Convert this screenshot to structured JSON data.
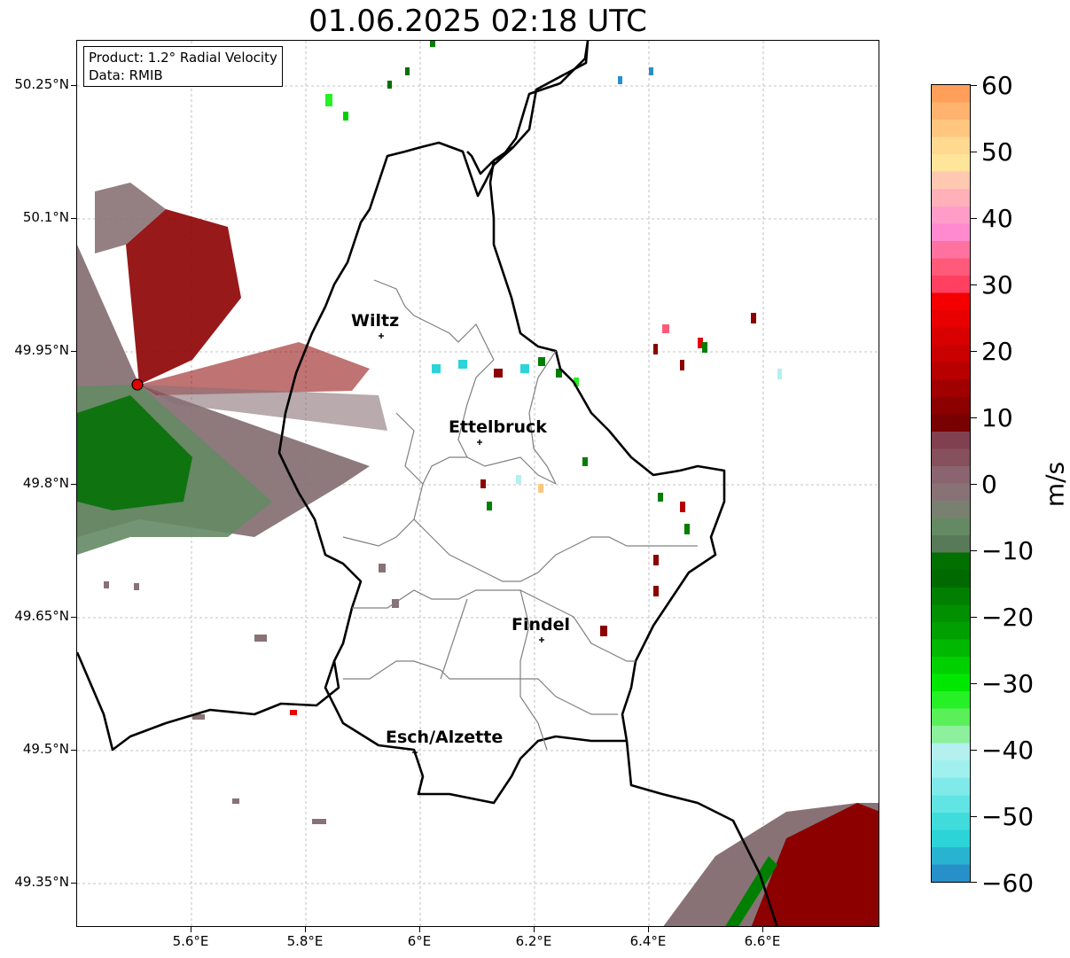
{
  "title": "01.06.2025 02:18 UTC",
  "info": {
    "product": "Product: 1.2° Radial Velocity",
    "data": "Data: RMIB"
  },
  "axes": {
    "lat_ticks": [
      "50.25°N",
      "50.1°N",
      "49.95°N",
      "49.8°N",
      "49.65°N",
      "49.5°N",
      "49.35°N"
    ],
    "lon_ticks": [
      "5.6°E",
      "5.8°E",
      "6°E",
      "6.2°E",
      "6.4°E",
      "6.6°E"
    ]
  },
  "colorbar": {
    "label": "m/s",
    "ticks": [
      "60",
      "50",
      "40",
      "30",
      "20",
      "10",
      "0",
      "−10",
      "−20",
      "−30",
      "−40",
      "−50",
      "−60"
    ],
    "colors": [
      "#ff9f5a",
      "#ffb36e",
      "#ffc680",
      "#ffd98f",
      "#ffe59a",
      "#ffc8b0",
      "#ffb0b8",
      "#ff9cc8",
      "#ff8ad0",
      "#ff72a0",
      "#ff5a7a",
      "#ff4060",
      "#f50000",
      "#e80000",
      "#d80000",
      "#c80000",
      "#b80000",
      "#a00000",
      "#8c0000",
      "#780000",
      "#804050",
      "#86505c",
      "#8a6470",
      "#887276",
      "#7a8070",
      "#648a64",
      "#587a58",
      "#007000",
      "#006a00",
      "#007f00",
      "#009000",
      "#00a000",
      "#00b800",
      "#00d000",
      "#00e800",
      "#26f026",
      "#5af05a",
      "#8cf09c",
      "#b4f0f0",
      "#a0f0f0",
      "#80eaea",
      "#60e4e4",
      "#40dcdc",
      "#2cd4d8",
      "#28b4d0",
      "#2890c8"
    ]
  },
  "cities": [
    {
      "name": "Wiltz"
    },
    {
      "name": "Ettelbruck"
    },
    {
      "name": "Findel"
    },
    {
      "name": "Esch/Alzette"
    }
  ],
  "radar_site": {
    "color": "#e00000"
  }
}
